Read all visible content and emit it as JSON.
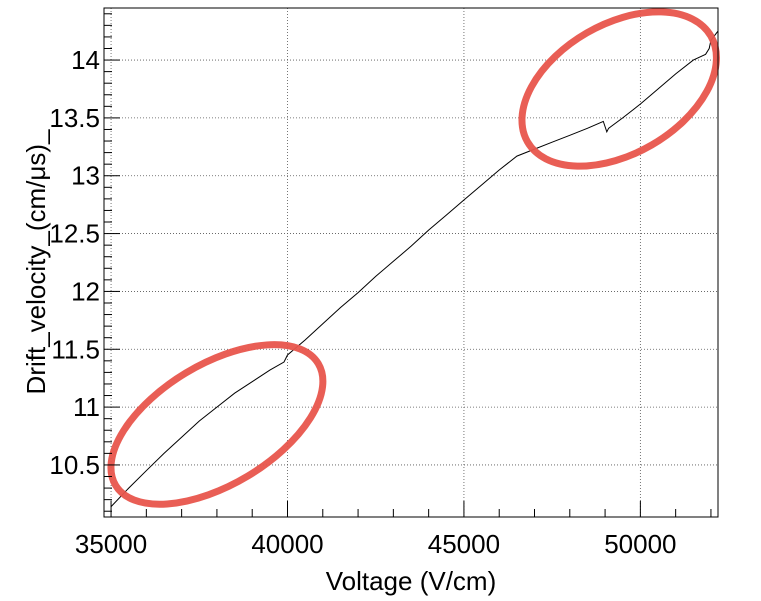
{
  "chart_data": {
    "type": "line",
    "title": "",
    "xlabel": "Voltage (V/cm)",
    "ylabel": "Drift_velocity_(cm/μs)_",
    "xlim": [
      34800,
      52200
    ],
    "ylim": [
      10.05,
      14.45
    ],
    "grid": true,
    "x_ticks": [
      {
        "value": 35000,
        "label": "35000"
      },
      {
        "value": 40000,
        "label": "40000"
      },
      {
        "value": 45000,
        "label": "45000"
      },
      {
        "value": 50000,
        "label": "50000"
      }
    ],
    "y_ticks": [
      {
        "value": 10.5,
        "label": "10.5"
      },
      {
        "value": 11,
        "label": "11"
      },
      {
        "value": 11.5,
        "label": "11.5"
      },
      {
        "value": 12,
        "label": "12"
      },
      {
        "value": 12.5,
        "label": "12.5"
      },
      {
        "value": 13,
        "label": "13"
      },
      {
        "value": 13.5,
        "label": "13.5"
      },
      {
        "value": 14,
        "label": "14"
      }
    ],
    "series": [
      {
        "color": "#000000",
        "x": [
          35000,
          35500,
          36000,
          36500,
          37000,
          37500,
          38000,
          38500,
          39000,
          39500,
          39900,
          40000,
          40500,
          41000,
          41500,
          42000,
          42500,
          43000,
          43500,
          44000,
          44500,
          45000,
          45500,
          46000,
          46500,
          47000,
          47500,
          48000,
          48500,
          48950,
          49050,
          49100,
          49500,
          50000,
          50500,
          51000,
          51500,
          51850,
          51950,
          52000,
          52200
        ],
        "y": [
          10.14,
          10.3,
          10.45,
          10.6,
          10.74,
          10.88,
          11.0,
          11.12,
          11.22,
          11.32,
          11.39,
          11.45,
          11.58,
          11.72,
          11.86,
          11.99,
          12.13,
          12.26,
          12.39,
          12.53,
          12.66,
          12.79,
          12.92,
          13.05,
          13.17,
          13.23,
          13.29,
          13.35,
          13.41,
          13.47,
          13.38,
          13.41,
          13.5,
          13.62,
          13.75,
          13.88,
          14.0,
          14.05,
          14.1,
          14.17,
          14.25
        ]
      }
    ],
    "annotations": [
      {
        "shape": "ellipse",
        "color": "#e8554c",
        "cx": 38000,
        "cy": 10.85,
        "rx": 3350,
        "ry": 0.52,
        "angle_deg": -31
      },
      {
        "shape": "ellipse",
        "color": "#e8554c",
        "cx": 49400,
        "cy": 13.75,
        "rx": 3000,
        "ry": 0.56,
        "angle_deg": -30
      }
    ]
  }
}
